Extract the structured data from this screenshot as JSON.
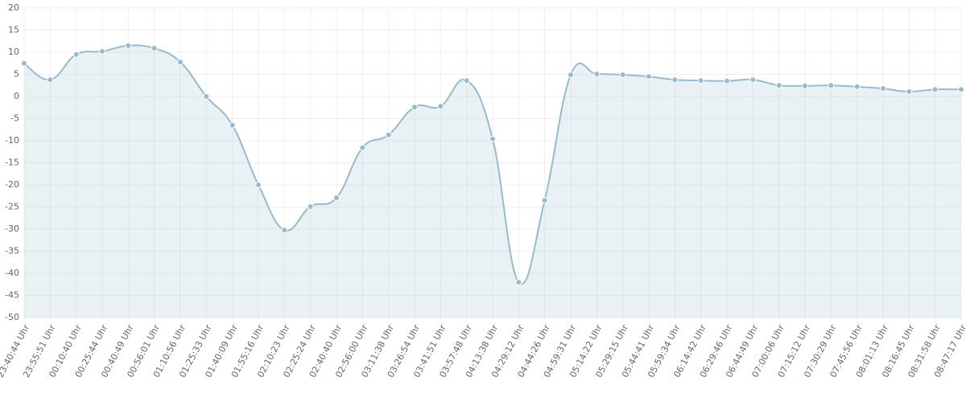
{
  "chart_data": {
    "type": "line",
    "categories": [
      "23:40:44 Uhr",
      "23:55:51 Uhr",
      "00:10:40 Uhr",
      "00:25:44 Uhr",
      "00:40:49 Uhr",
      "00:56:01 Uhr",
      "01:10:56 Uhr",
      "01:25:33 Uhr",
      "01:40:09 Uhr",
      "01:55:16 Uhr",
      "02:10:23 Uhr",
      "02:25:24 Uhr",
      "02:40:40 Uhr",
      "02:56:00 Uhr",
      "03:11:38 Uhr",
      "03:26:54 Uhr",
      "03:41:51 Uhr",
      "03:57:48 Uhr",
      "04:13:38 Uhr",
      "04:29:12 Uhr",
      "04:44:26 Uhr",
      "04:59:31 Uhr",
      "05:14:22 Uhr",
      "05:29:15 Uhr",
      "05:44:41 Uhr",
      "05:59:34 Uhr",
      "06:14:42 Uhr",
      "06:29:46 Uhr",
      "06:44:49 Uhr",
      "07:00:06 Uhr",
      "07:15:12 Uhr",
      "07:30:29 Uhr",
      "07:45:56 Uhr",
      "08:01:13 Uhr",
      "08:16:45 Uhr",
      "08:31:58 Uhr",
      "08:47:17 Uhr"
    ],
    "values": [
      7.5,
      3.8,
      9.5,
      10.2,
      11.5,
      10.9,
      7.8,
      0,
      -6.5,
      -20,
      -30.2,
      -24.9,
      -22.9,
      -11.6,
      -8.7,
      -2.4,
      -2.2,
      3.6,
      -9.6,
      -42,
      -23.5,
      4.9,
      5.1,
      4.9,
      4.5,
      3.8,
      3.6,
      3.5,
      3.8,
      2.5,
      2.4,
      2.5,
      2.2,
      1.8,
      1.1,
      1.6,
      1.6
    ],
    "color": "#97bbcd",
    "fill": "rgba(151,187,205,0.2)",
    "ylim": [
      -50,
      20
    ],
    "yticks": [
      -50,
      -45,
      -40,
      -35,
      -30,
      -25,
      -20,
      -15,
      -10,
      -5,
      0,
      5,
      10,
      15,
      20
    ],
    "grid": true
  }
}
